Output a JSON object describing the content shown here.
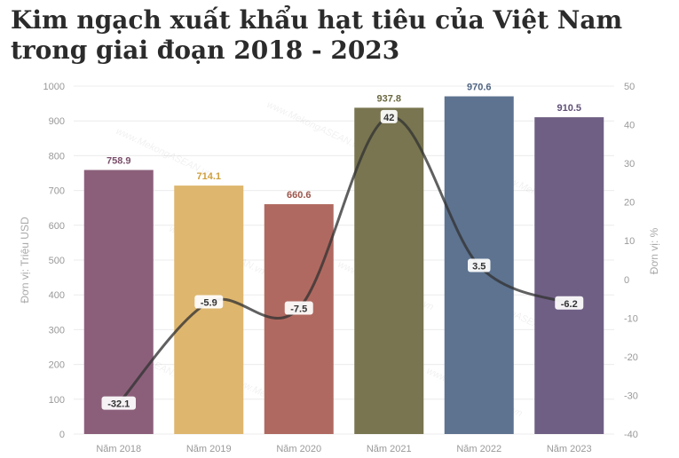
{
  "title": "Kim ngạch xuất khẩu hạt tiêu của Việt Nam trong giai đoạn 2018 - 2023",
  "watermark": "www.MekongASEAN.vn",
  "colors": {
    "bars": [
      "#8b5f7a",
      "#deb66e",
      "#b06960",
      "#787550",
      "#5d7390",
      "#6f5f84"
    ],
    "value_labels": [
      "#7a4f6a",
      "#cf9f3c",
      "#9d554b",
      "#6a6840",
      "#4f6482",
      "#5f5075"
    ],
    "growth_line": "#333333",
    "axis_text": "#999999",
    "grid": "#ececec"
  },
  "chart_data": {
    "type": "bar",
    "categories": [
      "Năm 2018",
      "Năm 2019",
      "Năm 2020",
      "Năm 2021",
      "Năm 2022",
      "Năm 2023"
    ],
    "series": [
      {
        "type": "bar",
        "axis": "left",
        "values": [
          758.9,
          714.1,
          660.6,
          937.8,
          970.6,
          910.5
        ]
      },
      {
        "type": "line",
        "axis": "right",
        "values": [
          -32.1,
          -5.9,
          -7.5,
          42,
          3.5,
          -6.2
        ]
      }
    ],
    "ylabel": "Đơn vị: Triệu USD",
    "ylim": [
      0,
      1000
    ],
    "yticks": [
      0,
      100,
      200,
      300,
      400,
      500,
      600,
      700,
      800,
      900,
      1000
    ],
    "y2label": "Đơn vị: %",
    "y2lim": [
      -40,
      50
    ],
    "y2ticks": [
      -40,
      -30,
      -20,
      -10,
      0,
      10,
      20,
      30,
      40,
      50
    ],
    "grid": true,
    "legend": "none"
  }
}
